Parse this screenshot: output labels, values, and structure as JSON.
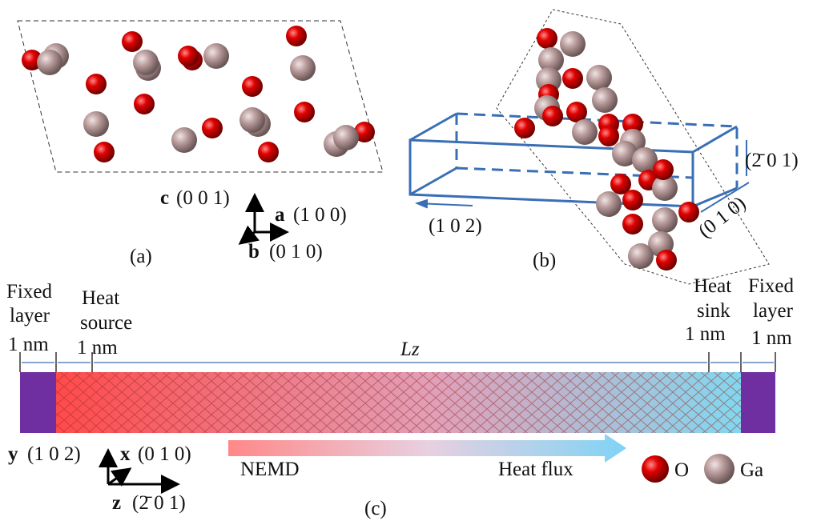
{
  "panel_a": {
    "label": "(a)",
    "axes": [
      {
        "letter": "c",
        "indices": "(0 0 1)"
      },
      {
        "letter": "a",
        "indices": "(1 0 0)"
      },
      {
        "letter": "b",
        "indices": "(0 1 0)"
      }
    ]
  },
  "panel_b": {
    "label": "(b)",
    "directions": [
      "(1 0 2)",
      "(0 1 0)",
      "(2̄ 0 1)"
    ]
  },
  "panel_c": {
    "label": "(c)",
    "left_fixed": {
      "lines": [
        "Fixed",
        "layer",
        "1 nm"
      ]
    },
    "heat_source": {
      "lines": [
        "Heat",
        "source",
        "1 nm"
      ]
    },
    "length": "Lz",
    "heat_sink": {
      "lines": [
        "Heat",
        "sink",
        "1 nm"
      ]
    },
    "right_fixed": {
      "lines": [
        "Fixed",
        "layer",
        "1 nm"
      ]
    },
    "axes": [
      {
        "letter": "y",
        "indices": "(1 0 2)"
      },
      {
        "letter": "x",
        "indices": "(0 1 0)"
      },
      {
        "letter": "z",
        "indices": "(2̄ 0 1)"
      }
    ],
    "arrow_start": "NEMD",
    "arrow_end": "Heat flux",
    "legend": [
      "O",
      "Ga"
    ]
  }
}
